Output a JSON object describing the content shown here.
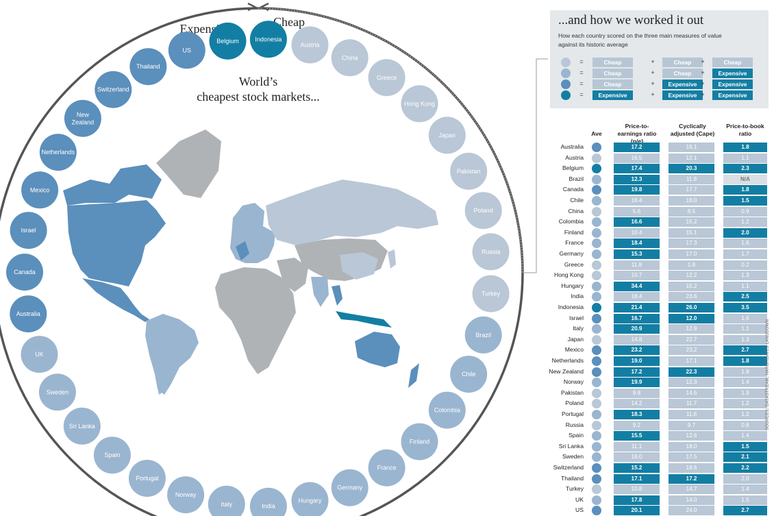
{
  "title": "World’s cheapest stock markets...",
  "ring_labels": {
    "expensive": "Expensive",
    "cheap": "Cheap"
  },
  "colors": {
    "cheap": "#b9c7d6",
    "mid_cheap": "#9ab5d0",
    "mid_exp": "#5b8fbc",
    "expensive": "#137ea3",
    "na": "#dadfe3",
    "ring": "#555555"
  },
  "panel": {
    "heading": "...and how we worked it out",
    "subheading": "How each country scored on the three main measures of value against its historic average",
    "legend": [
      {
        "level": 0,
        "scores": [
          "Cheap",
          "Cheap",
          "Cheap"
        ]
      },
      {
        "level": 1,
        "scores": [
          "Cheap",
          "Cheap",
          "Expensive"
        ]
      },
      {
        "level": 2,
        "scores": [
          "Cheap",
          "Expensive",
          "Expensive"
        ]
      },
      {
        "level": 3,
        "scores": [
          "Expensive",
          "Expensive",
          "Expensive"
        ]
      }
    ],
    "ops": [
      "=",
      "+",
      "+"
    ]
  },
  "table": {
    "headers": {
      "ave": "Ave",
      "pe": "Price-to-earnings ratio (p/e)",
      "cape": "Cyclically adjusted (Cape)",
      "pb": "Price-to-book ratio"
    },
    "rows": [
      {
        "country": "Australia",
        "ave": 2,
        "pe": "17.2",
        "pe_e": 1,
        "cape": "16.1",
        "cape_e": 0,
        "pb": "1.8",
        "pb_e": 1
      },
      {
        "country": "Austria",
        "ave": 0,
        "pe": "16.5",
        "pe_e": 0,
        "cape": "12.1",
        "cape_e": 0,
        "pb": "1.1",
        "pb_e": 0
      },
      {
        "country": "Belgium",
        "ave": 3,
        "pe": "17.4",
        "pe_e": 1,
        "cape": "20.3",
        "cape_e": 1,
        "pb": "2.3",
        "pb_e": 1
      },
      {
        "country": "Brazil",
        "ave": 1,
        "pe": "12.3",
        "pe_e": 1,
        "cape": "11.8",
        "cape_e": 0,
        "pb": "N/A",
        "pb_e": -1
      },
      {
        "country": "Canada",
        "ave": 2,
        "pe": "19.8",
        "pe_e": 1,
        "cape": "17.7",
        "cape_e": 0,
        "pb": "1.8",
        "pb_e": 1
      },
      {
        "country": "Chile",
        "ave": 1,
        "pe": "16.4",
        "pe_e": 0,
        "cape": "18.0",
        "cape_e": 0,
        "pb": "1.5",
        "pb_e": 1
      },
      {
        "country": "China",
        "ave": 0,
        "pe": "5.6",
        "pe_e": 0,
        "cape": "8.5",
        "cape_e": 0,
        "pb": "0.9",
        "pb_e": 0
      },
      {
        "country": "Colombia",
        "ave": 1,
        "pe": "16.6",
        "pe_e": 1,
        "cape": "15.2",
        "cape_e": 0,
        "pb": "1.2",
        "pb_e": 0
      },
      {
        "country": "Finland",
        "ave": 1,
        "pe": "10.4",
        "pe_e": 0,
        "cape": "15.1",
        "cape_e": 0,
        "pb": "2.0",
        "pb_e": 1
      },
      {
        "country": "France",
        "ave": 1,
        "pe": "18.4",
        "pe_e": 1,
        "cape": "17.3",
        "cape_e": 0,
        "pb": "1.6",
        "pb_e": 0
      },
      {
        "country": "Germany",
        "ave": 1,
        "pe": "15.3",
        "pe_e": 1,
        "cape": "17.0",
        "cape_e": 0,
        "pb": "1.7",
        "pb_e": 0
      },
      {
        "country": "Greece",
        "ave": 0,
        "pe": "11.8",
        "pe_e": 0,
        "cape": "1.8",
        "cape_e": 0,
        "pb": "0.2",
        "pb_e": 0
      },
      {
        "country": "Hong Kong",
        "ave": 0,
        "pe": "10.7",
        "pe_e": 0,
        "cape": "12.2",
        "cape_e": 0,
        "pb": "1.3",
        "pb_e": 0
      },
      {
        "country": "Hungary",
        "ave": 1,
        "pe": "34.4",
        "pe_e": 1,
        "cape": "15.2",
        "cape_e": 0,
        "pb": "1.1",
        "pb_e": 0
      },
      {
        "country": "India",
        "ave": 1,
        "pe": "18.4",
        "pe_e": 0,
        "cape": "23.6",
        "cape_e": 0,
        "pb": "2.5",
        "pb_e": 1
      },
      {
        "country": "Indonesia",
        "ave": 3,
        "pe": "21.4",
        "pe_e": 1,
        "cape": "26.0",
        "cape_e": 1,
        "pb": "3.5",
        "pb_e": 1
      },
      {
        "country": "Israel",
        "ave": 2,
        "pe": "16.7",
        "pe_e": 1,
        "cape": "12.0",
        "cape_e": 1,
        "pb": "1.6",
        "pb_e": 0
      },
      {
        "country": "Italy",
        "ave": 1,
        "pe": "20.9",
        "pe_e": 1,
        "cape": "12.9",
        "cape_e": 0,
        "pb": "1.1",
        "pb_e": 0
      },
      {
        "country": "Japan",
        "ave": 0,
        "pe": "14.8",
        "pe_e": 0,
        "cape": "22.7",
        "cape_e": 0,
        "pb": "1.3",
        "pb_e": 0
      },
      {
        "country": "Mexico",
        "ave": 2,
        "pe": "23.2",
        "pe_e": 1,
        "cape": "23.2",
        "cape_e": 0,
        "pb": "2.7",
        "pb_e": 1
      },
      {
        "country": "Netherlands",
        "ave": 2,
        "pe": "19.0",
        "pe_e": 1,
        "cape": "17.1",
        "cape_e": 0,
        "pb": "1.8",
        "pb_e": 1
      },
      {
        "country": "New Zealand",
        "ave": 2,
        "pe": "17.2",
        "pe_e": 1,
        "cape": "22.3",
        "cape_e": 1,
        "pb": "1.9",
        "pb_e": 0
      },
      {
        "country": "Norway",
        "ave": 1,
        "pe": "19.9",
        "pe_e": 1,
        "cape": "12.3",
        "cape_e": 0,
        "pb": "1.4",
        "pb_e": 0
      },
      {
        "country": "Pakistan",
        "ave": 0,
        "pe": "9.8",
        "pe_e": 0,
        "cape": "14.6",
        "cape_e": 0,
        "pb": "1.9",
        "pb_e": 0
      },
      {
        "country": "Poland",
        "ave": 0,
        "pe": "14.2",
        "pe_e": 0,
        "cape": "11.7",
        "cape_e": 0,
        "pb": "1.2",
        "pb_e": 0
      },
      {
        "country": "Portugal",
        "ave": 1,
        "pe": "18.3",
        "pe_e": 1,
        "cape": "11.6",
        "cape_e": 0,
        "pb": "1.2",
        "pb_e": 0
      },
      {
        "country": "Russia",
        "ave": 0,
        "pe": "9.2",
        "pe_e": 0,
        "cape": "9.7",
        "cape_e": 0,
        "pb": "0.8",
        "pb_e": 0
      },
      {
        "country": "Spain",
        "ave": 1,
        "pe": "15.5",
        "pe_e": 1,
        "cape": "12.6",
        "cape_e": 0,
        "pb": "1.4",
        "pb_e": 0
      },
      {
        "country": "Sri Lanka",
        "ave": 1,
        "pe": "11.1",
        "pe_e": 0,
        "cape": "18.0",
        "cape_e": 0,
        "pb": "1.5",
        "pb_e": 1
      },
      {
        "country": "Sweden",
        "ave": 1,
        "pe": "16.0",
        "pe_e": 0,
        "cape": "17.5",
        "cape_e": 0,
        "pb": "2.1",
        "pb_e": 1
      },
      {
        "country": "Switzerland",
        "ave": 2,
        "pe": "15.2",
        "pe_e": 1,
        "cape": "18.6",
        "cape_e": 0,
        "pb": "2.2",
        "pb_e": 1
      },
      {
        "country": "Thailand",
        "ave": 2,
        "pe": "17.1",
        "pe_e": 1,
        "cape": "17.2",
        "cape_e": 1,
        "pb": "2.0",
        "pb_e": 0
      },
      {
        "country": "Turkey",
        "ave": 0,
        "pe": "10.8",
        "pe_e": 0,
        "cape": "14.7",
        "cape_e": 0,
        "pb": "1.4",
        "pb_e": 0
      },
      {
        "country": "UK",
        "ave": 1,
        "pe": "17.8",
        "pe_e": 1,
        "cape": "14.0",
        "cape_e": 0,
        "pb": "1.5",
        "pb_e": 0
      },
      {
        "country": "US",
        "ave": 2,
        "pe": "20.1",
        "pe_e": 1,
        "cape": "24.0",
        "cape_e": 0,
        "pb": "2.7",
        "pb_e": 1
      }
    ]
  },
  "ring_countries": [
    {
      "name": "Belgium",
      "level": 3
    },
    {
      "name": "US",
      "level": 2
    },
    {
      "name": "Thailand",
      "level": 2
    },
    {
      "name": "Switzerland",
      "level": 2
    },
    {
      "name": "New Zealand",
      "level": 2
    },
    {
      "name": "Netherlands",
      "level": 2
    },
    {
      "name": "Mexico",
      "level": 2
    },
    {
      "name": "Israel",
      "level": 2
    },
    {
      "name": "Canada",
      "level": 2
    },
    {
      "name": "Australia",
      "level": 2
    },
    {
      "name": "UK",
      "level": 1
    },
    {
      "name": "Sweden",
      "level": 1
    },
    {
      "name": "Sri Lanka",
      "level": 1
    },
    {
      "name": "Spain",
      "level": 1
    },
    {
      "name": "Portugal",
      "level": 1
    },
    {
      "name": "Norway",
      "level": 1
    },
    {
      "name": "Italy",
      "level": 1
    },
    {
      "name": "India",
      "level": 1
    },
    {
      "name": "Hungary",
      "level": 1
    },
    {
      "name": "Germany",
      "level": 1
    },
    {
      "name": "France",
      "level": 1
    },
    {
      "name": "Finland",
      "level": 1
    },
    {
      "name": "Colombia",
      "level": 1
    },
    {
      "name": "Chile",
      "level": 1
    },
    {
      "name": "Brazil",
      "level": 1
    },
    {
      "name": "Turkey",
      "level": 0
    },
    {
      "name": "Russia",
      "level": 0
    },
    {
      "name": "Poland",
      "level": 0
    },
    {
      "name": "Pakistan",
      "level": 0
    },
    {
      "name": "Japan",
      "level": 0
    },
    {
      "name": "Hong Kong",
      "level": 0
    },
    {
      "name": "Greece",
      "level": 0
    },
    {
      "name": "China",
      "level": 0
    },
    {
      "name": "Austria",
      "level": 0
    },
    {
      "name": "Indonesia",
      "level": 3
    }
  ],
  "sources": "SOURCES: DATASTREAM, HARGREAVES LANSDOWN"
}
